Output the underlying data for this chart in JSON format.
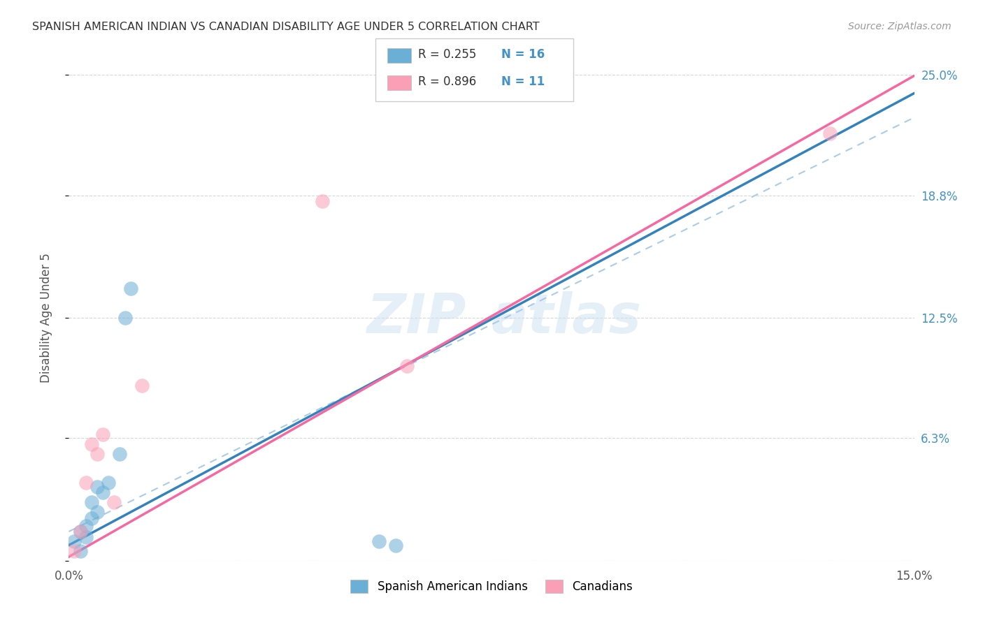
{
  "title": "SPANISH AMERICAN INDIAN VS CANADIAN DISABILITY AGE UNDER 5 CORRELATION CHART",
  "source": "Source: ZipAtlas.com",
  "ylabel": "Disability Age Under 5",
  "xlim": [
    0.0,
    0.15
  ],
  "ylim": [
    0.0,
    0.25
  ],
  "xticks": [
    0.0,
    0.025,
    0.05,
    0.075,
    0.1,
    0.125,
    0.15
  ],
  "xticklabels": [
    "0.0%",
    "",
    "",
    "",
    "",
    "",
    "15.0%"
  ],
  "ytick_positions": [
    0.0,
    0.063,
    0.125,
    0.188,
    0.25
  ],
  "yticklabels_right": [
    "",
    "6.3%",
    "12.5%",
    "18.8%",
    "25.0%"
  ],
  "blue_scatter_x": [
    0.001,
    0.002,
    0.002,
    0.003,
    0.003,
    0.004,
    0.004,
    0.005,
    0.005,
    0.006,
    0.007,
    0.009,
    0.01,
    0.011,
    0.055,
    0.058
  ],
  "blue_scatter_y": [
    0.01,
    0.005,
    0.015,
    0.012,
    0.018,
    0.022,
    0.03,
    0.025,
    0.038,
    0.035,
    0.04,
    0.055,
    0.125,
    0.14,
    0.01,
    0.008
  ],
  "pink_scatter_x": [
    0.001,
    0.002,
    0.003,
    0.004,
    0.005,
    0.006,
    0.008,
    0.013,
    0.045,
    0.06,
    0.135
  ],
  "pink_scatter_y": [
    0.005,
    0.015,
    0.04,
    0.06,
    0.055,
    0.065,
    0.03,
    0.09,
    0.185,
    0.1,
    0.22
  ],
  "blue_line_intercept": 0.008,
  "blue_line_slope": 1.55,
  "pink_line_intercept": 0.002,
  "pink_line_slope": 1.65,
  "dash_line_intercept": 0.015,
  "dash_line_slope": 1.42,
  "blue_color": "#6baed6",
  "pink_color": "#fa9fb5",
  "blue_line_color": "#3182bd",
  "pink_line_color": "#f768a1",
  "dash_color": "#aacce8",
  "legend_r_blue": "R = 0.255",
  "legend_n_blue": "N = 16",
  "legend_r_pink": "R = 0.896",
  "legend_n_pink": "N = 11",
  "watermark_zip": "ZIP",
  "watermark_atlas": "atlas",
  "grid_color": "#cccccc",
  "right_axis_color": "#4292c6",
  "title_color": "#333333",
  "source_color": "#999999",
  "bg_color": "#ffffff"
}
